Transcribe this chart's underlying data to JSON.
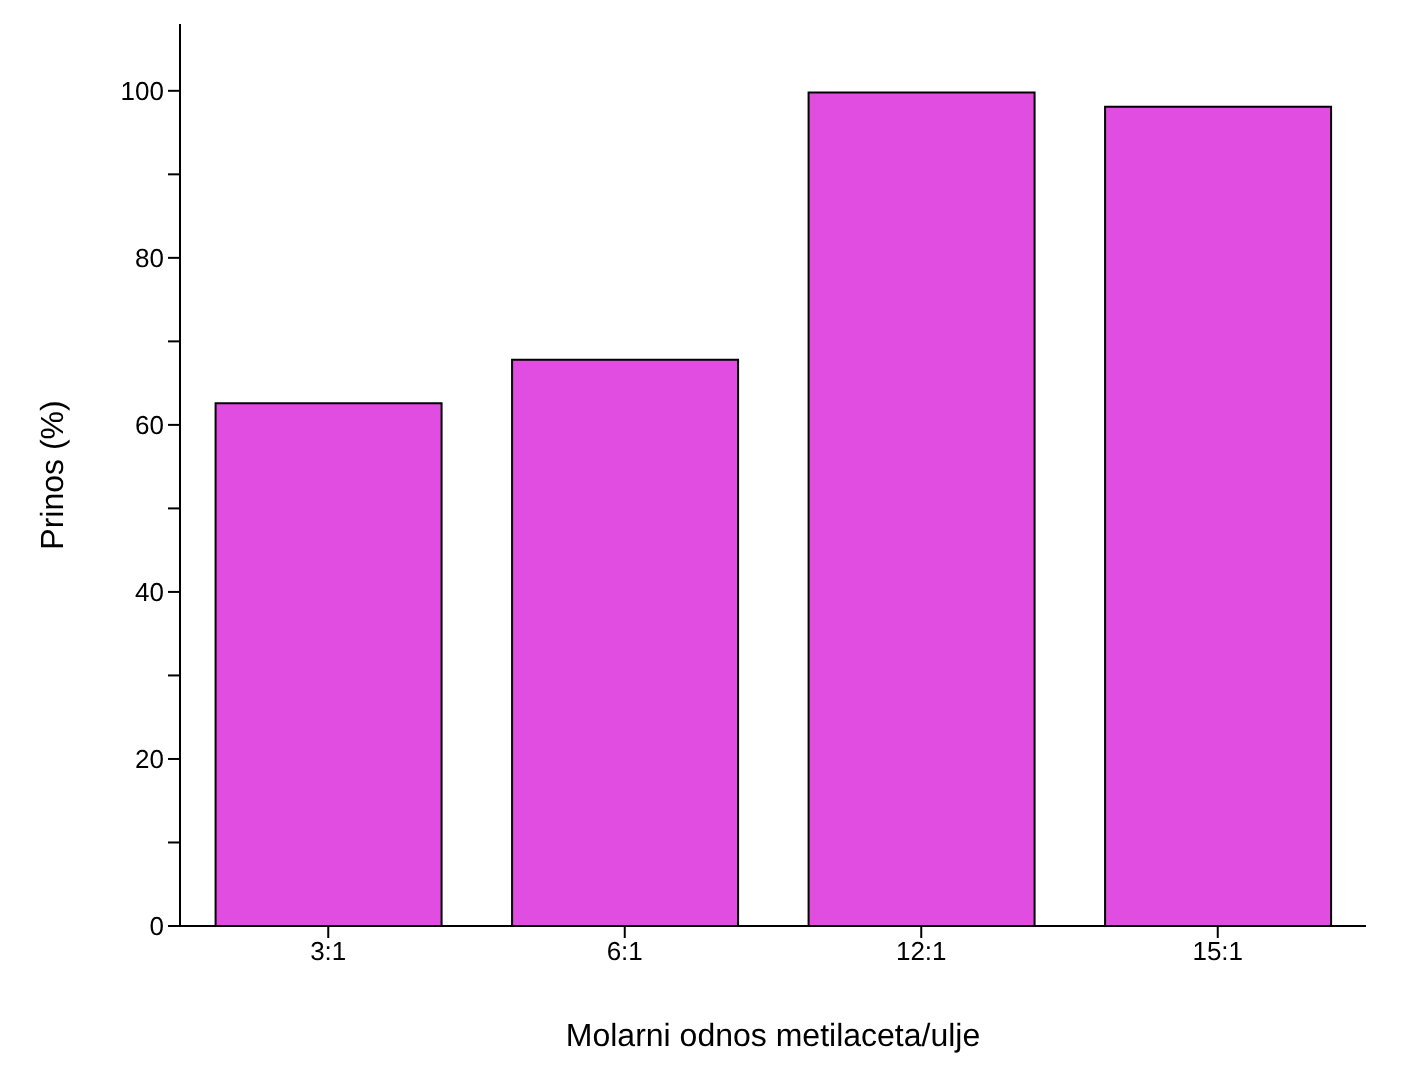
{
  "chart_data": {
    "type": "bar",
    "xlabel": "Molarni odnos metilaceta/ulje",
    "ylabel": "Prinos (%)",
    "categories": [
      "3:1",
      "6:1",
      "12:1",
      "15:1"
    ],
    "values": [
      62.6,
      67.8,
      99.8,
      98.1
    ],
    "color": "#e04de0",
    "ylim": [
      0,
      108
    ],
    "yticks": [
      0,
      {
        "value": 10,
        "label": null
      },
      20,
      {
        "value": 30,
        "label": null
      },
      40,
      {
        "value": 50,
        "label": null
      },
      60,
      {
        "value": 70,
        "label": null
      },
      80,
      {
        "value": 90,
        "label": null
      },
      100
    ],
    "grid": false
  }
}
